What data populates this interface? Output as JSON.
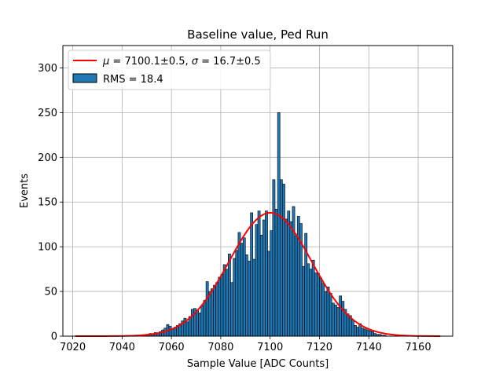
{
  "chart_data": {
    "type": "bar",
    "title": "Baseline value, Ped Run",
    "xlabel": "Sample Value [ADC Counts]",
    "ylabel": "Events",
    "xlim": [
      7016,
      7174
    ],
    "ylim": [
      0,
      325
    ],
    "xticks": [
      7020,
      7040,
      7060,
      7080,
      7100,
      7120,
      7140,
      7160
    ],
    "yticks": [
      0,
      50,
      100,
      150,
      200,
      250,
      300
    ],
    "grid": true,
    "legend_position": "top-left",
    "bin_width": 1,
    "bin_start": 7021,
    "hist_values": [
      0,
      0,
      0,
      0,
      0,
      0,
      0,
      0,
      0,
      0,
      0,
      0,
      0,
      0,
      0,
      0,
      0,
      0,
      0,
      0,
      0,
      0,
      0,
      0,
      0,
      0,
      0,
      1,
      1,
      2,
      3,
      2,
      4,
      3,
      5,
      7,
      9,
      13,
      11,
      8,
      10,
      12,
      14,
      17,
      20,
      16,
      22,
      30,
      31,
      29,
      26,
      34,
      40,
      61,
      50,
      53,
      57,
      60,
      66,
      69,
      80,
      75,
      92,
      60,
      87,
      96,
      116,
      104,
      110,
      91,
      84,
      138,
      86,
      125,
      140,
      113,
      130,
      140,
      95,
      118,
      175,
      142,
      250,
      175,
      170,
      131,
      140,
      128,
      145,
      112,
      134,
      126,
      78,
      115,
      81,
      75,
      85,
      71,
      70,
      65,
      59,
      50,
      55,
      48,
      37,
      35,
      32,
      45,
      39,
      30,
      25,
      23,
      18,
      12,
      10,
      14,
      9,
      8,
      7,
      6,
      5,
      3,
      2,
      2,
      1,
      1,
      0,
      0,
      0,
      0,
      0,
      0,
      0,
      0,
      0,
      0,
      0,
      0,
      0,
      0
    ],
    "fit": {
      "type": "gaussian",
      "mu": 7100.1,
      "sigma": 16.7,
      "amplitude": 138,
      "range": [
        7021,
        7169
      ]
    },
    "series": [
      {
        "name": "$\\mu = 7100.1\\pm 0.5$, $\\sigma = 16.7\\pm 0.5$",
        "kind": "line",
        "color": "#ff0000"
      },
      {
        "name": "RMS = 18.4",
        "kind": "bar",
        "color": "#1f77b4"
      }
    ],
    "legend": {
      "line_label_prefix": "μ",
      "line_label_mu": " = 7100.1±0.5, ",
      "line_label_sigma_sym": "σ",
      "line_label_sigma": " = 16.7±0.5",
      "bar_label": "RMS = 18.4"
    }
  }
}
